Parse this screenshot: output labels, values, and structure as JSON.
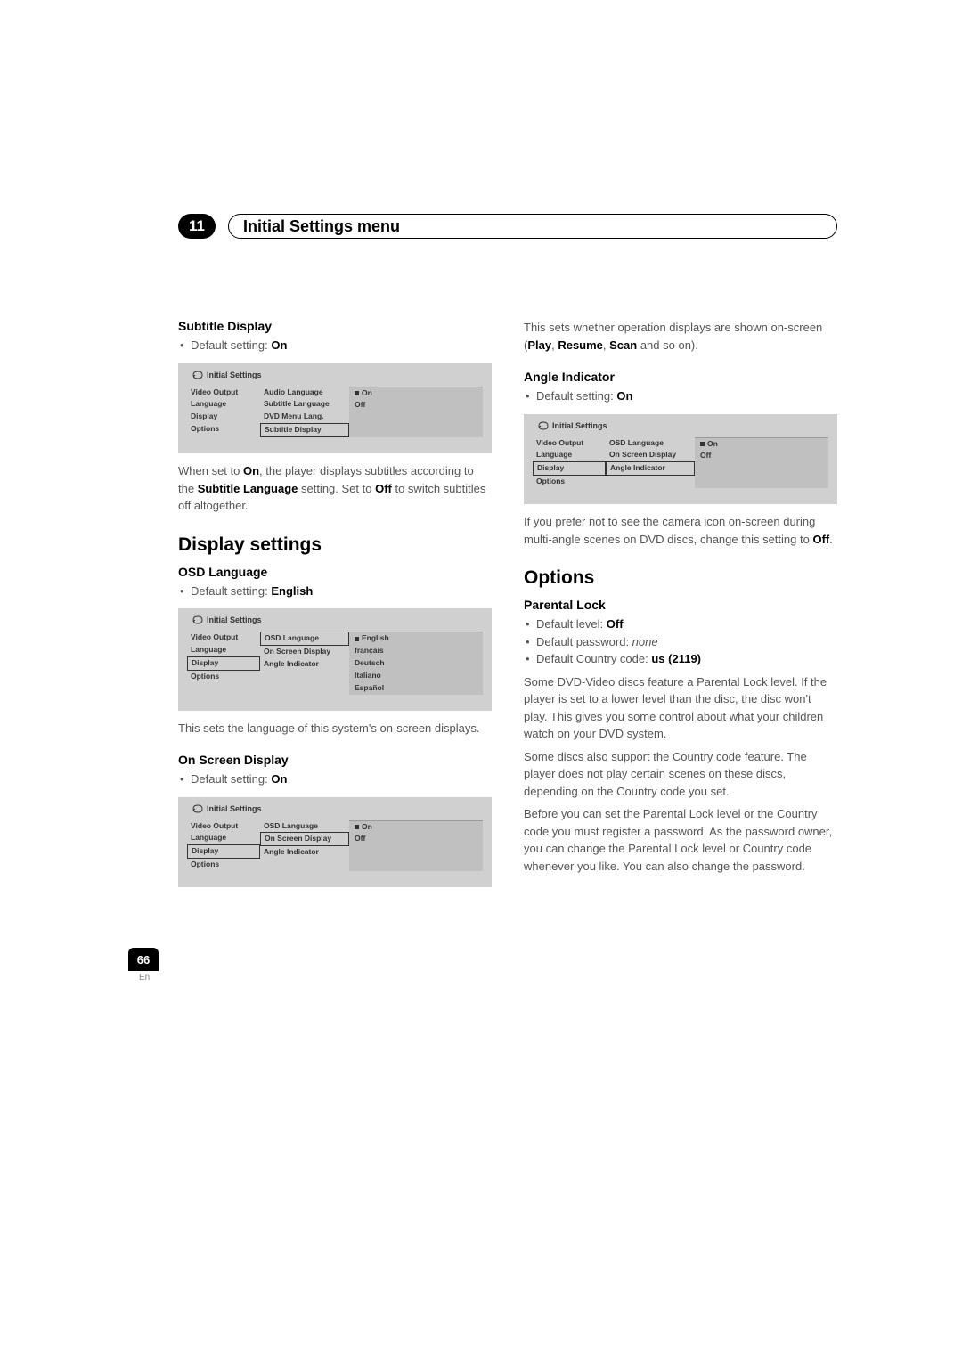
{
  "chapter": {
    "number": "11",
    "title": "Initial Settings menu"
  },
  "pageNumber": "66",
  "pageLang": "En",
  "menuLabel": "Initial Settings",
  "colors": {
    "menuBg": "#d0d0d0",
    "menuRightBg": "#c0c0c0",
    "bodyText": "#555555",
    "heading": "#000000"
  },
  "left": {
    "subtitleDisplay": {
      "heading": "Subtitle Display",
      "bullet_prefix": "Default setting: ",
      "bullet_value": "On",
      "menu": {
        "colA": [
          "Video Output",
          "Language",
          "Display",
          "Options"
        ],
        "colB": [
          "Audio Language",
          "Subtitle Language",
          "DVD Menu Lang.",
          "Subtitle Display"
        ],
        "selectedB": 3,
        "colC": [
          {
            "label": "On",
            "sel": true
          },
          {
            "label": "Off",
            "sel": false
          }
        ]
      },
      "desc_1": "When set to ",
      "desc_1b": "On",
      "desc_2": ", the player displays subtitles according to the ",
      "desc_2b": "Subtitle Language",
      "desc_3": " setting. Set to ",
      "desc_3b": "Off",
      "desc_4": " to switch subtitles off altogether."
    },
    "displaySettings": {
      "title": "Display settings"
    },
    "osdLanguage": {
      "heading": "OSD Language",
      "bullet_prefix": "Default setting: ",
      "bullet_value": "English",
      "menu": {
        "colA": [
          "Video Output",
          "Language",
          "Display",
          "Options"
        ],
        "colB": [
          "OSD Language",
          "On Screen Display",
          "Angle Indicator"
        ],
        "selectedA": 2,
        "selectedB": 0,
        "colC": [
          {
            "label": "English",
            "sel": true
          },
          {
            "label": "français",
            "sel": false
          },
          {
            "label": "Deutsch",
            "sel": false
          },
          {
            "label": "Italiano",
            "sel": false
          },
          {
            "label": "Español",
            "sel": false
          }
        ]
      },
      "desc": "This sets the language of this system's on-screen displays."
    },
    "onScreenDisplay": {
      "heading": "On Screen Display",
      "bullet_prefix": "Default setting: ",
      "bullet_value": "On",
      "menu": {
        "colA": [
          "Video Output",
          "Language",
          "Display",
          "Options"
        ],
        "colB": [
          "OSD Language",
          "On Screen Display",
          "Angle Indicator"
        ],
        "selectedA": 2,
        "selectedB": 1,
        "colC": [
          {
            "label": "On",
            "sel": true
          },
          {
            "label": "Off",
            "sel": false
          }
        ]
      }
    }
  },
  "right": {
    "topDesc_1": "This sets whether operation displays are shown on-screen (",
    "topDesc_b1": "Play",
    "topDesc_s1": ", ",
    "topDesc_b2": "Resume",
    "topDesc_s2": ", ",
    "topDesc_b3": "Scan",
    "topDesc_2": " and so on).",
    "angleIndicator": {
      "heading": "Angle Indicator",
      "bullet_prefix": "Default setting: ",
      "bullet_value": "On",
      "menu": {
        "colA": [
          "Video Output",
          "Language",
          "Display",
          "Options"
        ],
        "colB": [
          "OSD Language",
          "On Screen Display",
          "Angle Indicator"
        ],
        "selectedA": 2,
        "selectedB": 2,
        "colC": [
          {
            "label": "On",
            "sel": true
          },
          {
            "label": "Off",
            "sel": false
          }
        ]
      },
      "desc_1": "If you prefer not to see the camera icon on-screen during multi-angle scenes on DVD discs, change this setting to ",
      "desc_1b": "Off",
      "desc_2": "."
    },
    "options": {
      "title": "Options"
    },
    "parentalLock": {
      "heading": "Parental Lock",
      "b1_prefix": "Default level: ",
      "b1_value": "Off",
      "b2_prefix": "Default password: ",
      "b2_value": "none",
      "b3_prefix": "Default Country code: ",
      "b3_value": "us (2119)",
      "p1": "Some DVD-Video discs feature a Parental Lock level. If the player is set to a lower level than the disc, the disc won't play. This gives you some control about what your children watch on your DVD system.",
      "p2": "Some discs also support the Country code feature. The player does not play certain scenes on these discs, depending on the Country code you set.",
      "p3": "Before you can set the Parental Lock level or the Country code you must register a password. As the password owner, you can change the Parental Lock level or Country code whenever you like. You can also change the password."
    }
  }
}
